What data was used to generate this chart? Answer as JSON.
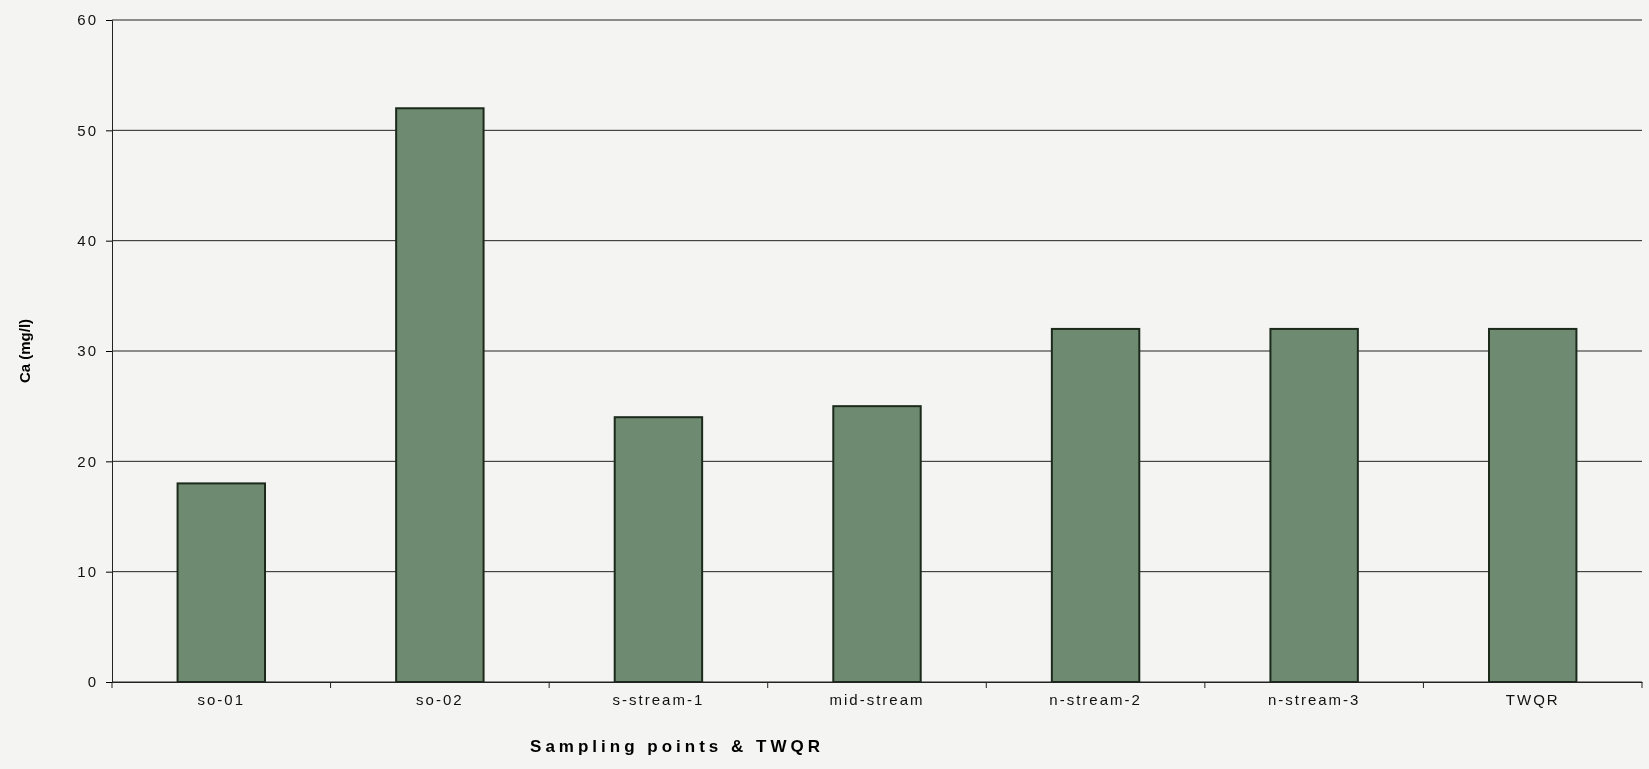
{
  "chart_data": {
    "type": "bar",
    "xlabel": "Sampling points & TWQR",
    "ylabel": "Ca (mg/l)",
    "categories": [
      "so-01",
      "so-02",
      "s-stream-1",
      "mid-stream",
      "n-stream-2",
      "n-stream-3",
      "TWQR"
    ],
    "values": [
      18,
      52,
      24,
      25,
      32,
      32,
      32
    ],
    "color": "#6e8a70",
    "ylim": [
      0,
      60
    ],
    "yticks": [
      0,
      10,
      20,
      30,
      40,
      50,
      60
    ],
    "grid": "y"
  }
}
